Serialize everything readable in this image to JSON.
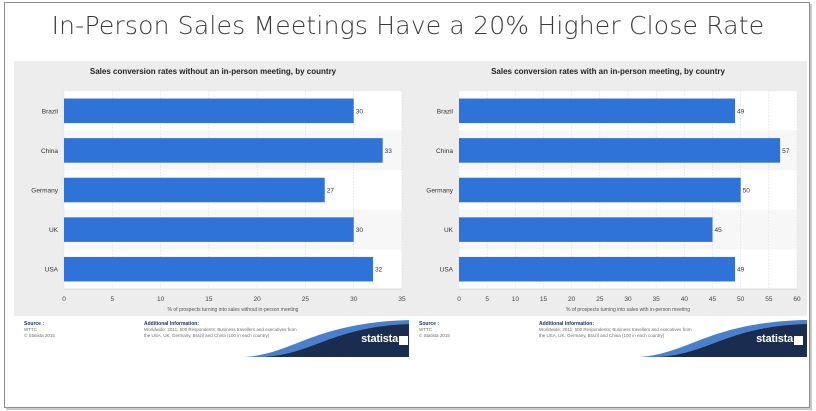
{
  "page": {
    "title": "In-Person Sales Meetings Have a 20% Higher Close Rate"
  },
  "chart_data": [
    {
      "type": "bar",
      "orientation": "horizontal",
      "title": "Sales conversion rates without an in-person meeting, by country",
      "categories": [
        "Brazil",
        "China",
        "Germany",
        "UK",
        "USA"
      ],
      "values": [
        30,
        33,
        27,
        30,
        32
      ],
      "xlabel": "% of prospects turning into sales without in-person meeting",
      "xlim": [
        0,
        35
      ],
      "xticks": [
        0,
        5,
        10,
        15,
        20,
        25,
        30,
        35
      ],
      "bar_color": "#2f73d8",
      "source_label": "Source :",
      "source_lines": [
        "WTTC",
        "© Statista 2015"
      ],
      "additional_label": "Additional Information:",
      "additional_text": "Worldwide; 2011; 500 Respondents; Business travellers and executives from the USA, UK, Germany, Brazil and China (100 in each country)",
      "brand": "statista"
    },
    {
      "type": "bar",
      "orientation": "horizontal",
      "title": "Sales conversion rates with an in-person meeting, by country",
      "categories": [
        "Brazil",
        "China",
        "Germany",
        "UK",
        "USA"
      ],
      "values": [
        49,
        57,
        50,
        45,
        49
      ],
      "xlabel": "% of prospects turning into sales with in-person meeting",
      "xlim": [
        0,
        60
      ],
      "xticks": [
        0,
        5,
        10,
        15,
        20,
        25,
        30,
        35,
        40,
        45,
        50,
        55,
        60
      ],
      "bar_color": "#2f73d8",
      "source_label": "Source :",
      "source_lines": [
        "WTTC",
        "© Statista 2015"
      ],
      "additional_label": "Additional Information:",
      "additional_text": "Worldwide; 2011; 500 Respondents; Business travellers and executives from the USA, UK, Germany, Brazil and China (100 in each country)",
      "brand": "statista"
    }
  ]
}
